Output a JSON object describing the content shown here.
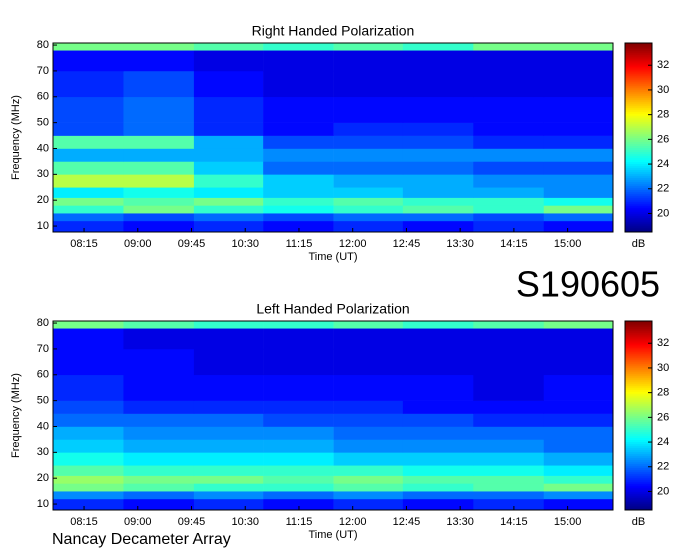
{
  "chart_data": [
    {
      "type": "heatmap",
      "title": "Right Handed Polarization",
      "xlabel": "Time (UT)",
      "ylabel": "Frequency (MHz)",
      "colormap": "jet",
      "xlim": [
        469,
        938
      ],
      "ylim": [
        7.7,
        80.8
      ],
      "xticks": [
        {
          "value": 495,
          "label": "08:15"
        },
        {
          "value": 540,
          "label": "09:00"
        },
        {
          "value": 585,
          "label": "09:45"
        },
        {
          "value": 630,
          "label": "10:30"
        },
        {
          "value": 675,
          "label": "11:15"
        },
        {
          "value": 720,
          "label": "12:00"
        },
        {
          "value": 765,
          "label": "12:45"
        },
        {
          "value": 810,
          "label": "13:30"
        },
        {
          "value": 855,
          "label": "14:15"
        },
        {
          "value": 900,
          "label": "15:00"
        }
      ],
      "yticks": [
        10,
        20,
        30,
        40,
        50,
        60,
        70,
        80
      ],
      "x_bins": [
        469,
        528,
        587,
        645,
        704,
        762,
        821,
        880,
        938
      ],
      "y_bins": [
        7.7,
        12,
        15,
        18,
        21,
        25,
        30,
        35,
        40,
        45,
        50,
        60,
        70,
        78,
        80.8
      ],
      "z": [
        [
          21,
          20.5,
          21,
          20.5,
          21,
          20.5,
          21,
          20.5
        ],
        [
          22,
          21.5,
          22,
          21.5,
          22,
          22,
          21.5,
          22
        ],
        [
          25,
          26,
          25,
          24.5,
          25,
          25.5,
          25,
          26
        ],
        [
          26,
          25.5,
          26,
          25,
          25.5,
          25,
          25,
          24.5
        ],
        [
          24,
          24.5,
          24,
          23.5,
          23.5,
          23,
          23,
          22.5
        ],
        [
          27,
          27,
          25,
          23.5,
          23,
          23,
          22.5,
          22.5
        ],
        [
          25.5,
          25.5,
          23.5,
          22,
          22,
          22,
          21.5,
          21.5
        ],
        [
          23,
          23,
          23,
          22.5,
          22.5,
          22.5,
          22.5,
          22.5
        ],
        [
          25.5,
          25.5,
          23,
          21.5,
          21.5,
          21.5,
          21,
          21
        ],
        [
          21.5,
          22,
          21,
          20.5,
          21,
          21,
          20.5,
          20.5
        ],
        [
          21.5,
          22,
          21,
          20.5,
          20.5,
          20.5,
          20.5,
          20.5
        ],
        [
          21,
          21.5,
          20.5,
          20,
          20,
          20,
          20,
          20
        ],
        [
          20.5,
          20.5,
          20,
          20,
          20,
          20,
          20,
          20
        ],
        [
          26,
          26,
          25.5,
          25,
          25.5,
          25,
          26,
          26
        ]
      ],
      "colorbar": {
        "label": "dB",
        "zlim": [
          18.5,
          33.8
        ],
        "ticks": [
          20,
          22,
          24,
          26,
          28,
          30,
          32
        ]
      }
    },
    {
      "type": "heatmap",
      "title": "Left Handed Polarization",
      "xlabel": "Time (UT)",
      "ylabel": "Frequency (MHz)",
      "colormap": "jet",
      "xlim": [
        469,
        938
      ],
      "ylim": [
        7.7,
        80.8
      ],
      "xticks": [
        {
          "value": 495,
          "label": "08:15"
        },
        {
          "value": 540,
          "label": "09:00"
        },
        {
          "value": 585,
          "label": "09:45"
        },
        {
          "value": 630,
          "label": "10:30"
        },
        {
          "value": 675,
          "label": "11:15"
        },
        {
          "value": 720,
          "label": "12:00"
        },
        {
          "value": 765,
          "label": "12:45"
        },
        {
          "value": 810,
          "label": "13:30"
        },
        {
          "value": 855,
          "label": "14:15"
        },
        {
          "value": 900,
          "label": "15:00"
        }
      ],
      "yticks": [
        10,
        20,
        30,
        40,
        50,
        60,
        70,
        80
      ],
      "x_bins": [
        469,
        528,
        587,
        645,
        704,
        762,
        821,
        880,
        938
      ],
      "y_bins": [
        7.7,
        12,
        15,
        18,
        21,
        25,
        30,
        35,
        40,
        45,
        50,
        60,
        70,
        78,
        80.8
      ],
      "z": [
        [
          21,
          20.5,
          21,
          20.5,
          21,
          20.5,
          21,
          20.5
        ],
        [
          22.5,
          22,
          22.5,
          22,
          22.5,
          22,
          22,
          22.5
        ],
        [
          26,
          25.5,
          25,
          25,
          25.5,
          25,
          25.5,
          26
        ],
        [
          26.5,
          26,
          26,
          25.5,
          26,
          25.5,
          25.5,
          25
        ],
        [
          25.5,
          25,
          25,
          25,
          25,
          24.5,
          24.5,
          24
        ],
        [
          24.5,
          24,
          24,
          24,
          23.5,
          23.5,
          23.5,
          23
        ],
        [
          23.5,
          23,
          23,
          23,
          22.5,
          22.5,
          22.5,
          22
        ],
        [
          23,
          22.5,
          22.5,
          22.5,
          22,
          22,
          22,
          22
        ],
        [
          22,
          22,
          22,
          21.5,
          21.5,
          21.5,
          21,
          21
        ],
        [
          21.5,
          21,
          21,
          21,
          21,
          20.5,
          20.5,
          20.5
        ],
        [
          21,
          20.5,
          20.5,
          20.5,
          20.5,
          20.5,
          20,
          20.5
        ],
        [
          20.5,
          20.5,
          20,
          20,
          20,
          20,
          20,
          20
        ],
        [
          20.5,
          20,
          20,
          20,
          20,
          20,
          20,
          20
        ],
        [
          26,
          25.5,
          25,
          25,
          25.5,
          25,
          25.5,
          26
        ]
      ],
      "colorbar": {
        "label": "dB",
        "zlim": [
          18.5,
          33.8
        ],
        "ticks": [
          20,
          22,
          24,
          26,
          28,
          30,
          32
        ]
      }
    }
  ],
  "event_id": "S190605",
  "footer": "Nancay Decameter Array"
}
